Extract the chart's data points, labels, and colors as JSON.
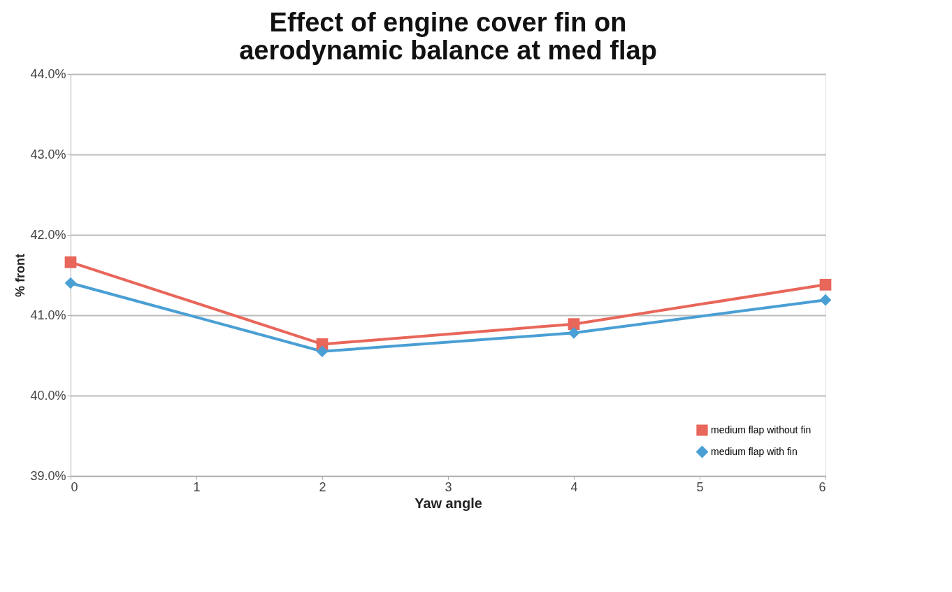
{
  "chart_data": {
    "type": "line",
    "title": [
      "Effect of engine cover fin on",
      "aerodynamic balance at med flap"
    ],
    "xlabel": "Yaw angle",
    "ylabel": "% front",
    "x": [
      0,
      2,
      4,
      6
    ],
    "series": [
      {
        "name": "medium flap without fin",
        "color": "#e8665a",
        "marker": "square",
        "values": [
          41.66,
          40.64,
          40.89,
          41.38
        ]
      },
      {
        "name": "medium flap with fin",
        "color": "#4a9fd4",
        "marker": "diamond",
        "values": [
          41.4,
          40.55,
          40.78,
          41.19
        ]
      }
    ],
    "xlim": [
      0,
      6
    ],
    "xticks": [
      0,
      1,
      2,
      3,
      4,
      5,
      6
    ],
    "ylim": [
      39,
      44
    ],
    "yticks": [
      {
        "value": 39,
        "label": "39.0%"
      },
      {
        "value": 40,
        "label": "40.0%"
      },
      {
        "value": 41,
        "label": "41.0%"
      },
      {
        "value": 42,
        "label": "42.0%"
      },
      {
        "value": 43,
        "label": "43.0%"
      },
      {
        "value": 44,
        "label": "44.0%"
      }
    ],
    "grid": "y",
    "legend": "bottom right",
    "line_style": "solid"
  }
}
